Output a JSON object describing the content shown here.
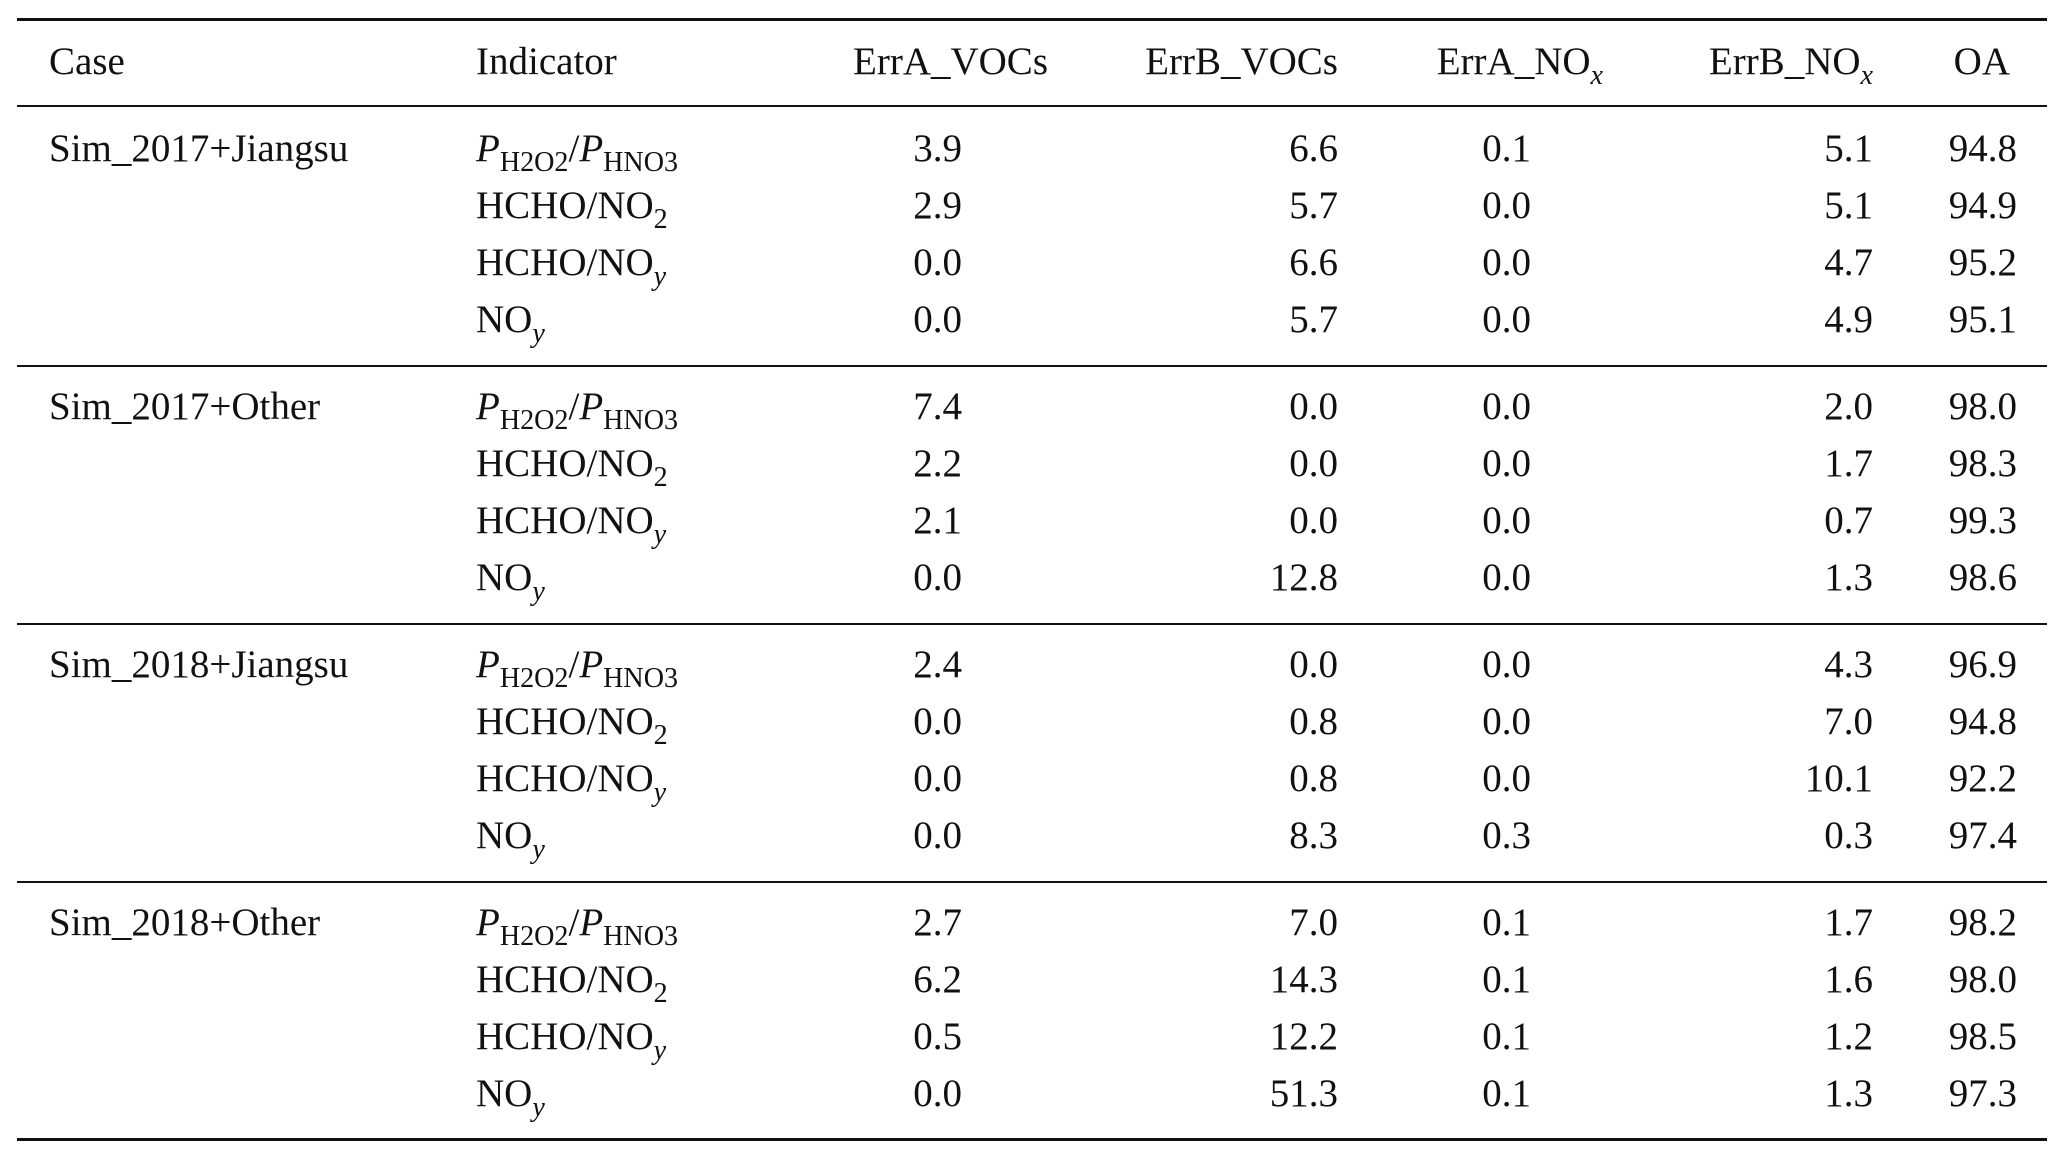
{
  "table": {
    "headers": [
      [
        {
          "t": "Case"
        }
      ],
      [
        {
          "t": "Indicator"
        }
      ],
      [
        {
          "t": "ErrA_VOCs"
        }
      ],
      [
        {
          "t": "ErrB_VOCs"
        }
      ],
      [
        {
          "t": "ErrA_NO"
        },
        {
          "t": "x",
          "sub": true,
          "i": true
        }
      ],
      [
        {
          "t": "ErrB_NO"
        },
        {
          "t": "x",
          "sub": true,
          "i": true
        }
      ],
      [
        {
          "t": "OA"
        }
      ]
    ],
    "indicators": [
      [
        {
          "t": "P",
          "i": true
        },
        {
          "t": "H2O2",
          "sub": true
        },
        {
          "t": "/"
        },
        {
          "t": "P",
          "i": true
        },
        {
          "t": "HNO3",
          "sub": true
        }
      ],
      [
        {
          "t": "HCHO/NO"
        },
        {
          "t": "2",
          "sub": true
        }
      ],
      [
        {
          "t": "HCHO/NO"
        },
        {
          "t": "y",
          "sub": true,
          "i": true
        }
      ],
      [
        {
          "t": "NO"
        },
        {
          "t": "y",
          "sub": true,
          "i": true
        }
      ]
    ],
    "groups": [
      {
        "case": "Sim_2017+Jiangsu",
        "rows": [
          [
            "3.9",
            "6.6",
            "0.1",
            "5.1",
            "94.8"
          ],
          [
            "2.9",
            "5.7",
            "0.0",
            "5.1",
            "94.9"
          ],
          [
            "0.0",
            "6.6",
            "0.0",
            "4.7",
            "95.2"
          ],
          [
            "0.0",
            "5.7",
            "0.0",
            "4.9",
            "95.1"
          ]
        ]
      },
      {
        "case": "Sim_2017+Other",
        "rows": [
          [
            "7.4",
            "0.0",
            "0.0",
            "2.0",
            "98.0"
          ],
          [
            "2.2",
            "0.0",
            "0.0",
            "1.7",
            "98.3"
          ],
          [
            "2.1",
            "0.0",
            "0.0",
            "0.7",
            "99.3"
          ],
          [
            "0.0",
            "12.8",
            "0.0",
            "1.3",
            "98.6"
          ]
        ]
      },
      {
        "case": "Sim_2018+Jiangsu",
        "rows": [
          [
            "2.4",
            "0.0",
            "0.0",
            "4.3",
            "96.9"
          ],
          [
            "0.0",
            "0.8",
            "0.0",
            "7.0",
            "94.8"
          ],
          [
            "0.0",
            "0.8",
            "0.0",
            "10.1",
            "92.2"
          ],
          [
            "0.0",
            "8.3",
            "0.3",
            "0.3",
            "97.4"
          ]
        ]
      },
      {
        "case": "Sim_2018+Other",
        "rows": [
          [
            "2.7",
            "7.0",
            "0.1",
            "1.7",
            "98.2"
          ],
          [
            "6.2",
            "14.3",
            "0.1",
            "1.6",
            "98.0"
          ],
          [
            "0.5",
            "12.2",
            "0.1",
            "1.2",
            "98.5"
          ],
          [
            "0.0",
            "51.3",
            "0.1",
            "1.3",
            "97.3"
          ]
        ]
      }
    ]
  }
}
